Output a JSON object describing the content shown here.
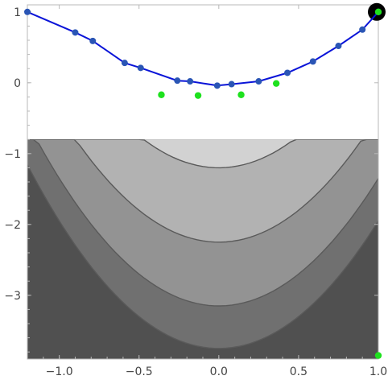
{
  "chart_data": {
    "type": "line",
    "title": "",
    "xlabel": "",
    "ylabel": "",
    "xlim": [
      -1.2,
      1.0
    ],
    "ylim": [
      -3.9,
      1.1
    ],
    "grid": false,
    "legend": "none",
    "x_ticks": [
      -1.0,
      -0.5,
      0.0,
      0.5,
      1.0
    ],
    "x_tick_labels": [
      "−1.0",
      "−0.5",
      "0.0",
      "0.5",
      "1.0"
    ],
    "y_ticks": [
      -3,
      -2,
      -1,
      0,
      1
    ],
    "y_tick_labels": [
      "−3",
      "−2",
      "−1",
      "0",
      "1"
    ],
    "contour_region": {
      "x": [
        -1.2,
        1.0
      ],
      "y": [
        -3.9,
        -0.8
      ]
    },
    "contour_levels": [
      -1.2,
      -2.25,
      -3.15,
      -3.75
    ],
    "contour_fill_colors": [
      "#d2d2d2",
      "#b2b2b2",
      "#939393",
      "#707070",
      "#505050"
    ],
    "contour_line_color": "#5a5a5a",
    "series": [
      {
        "color": "#0a14d8",
        "marker_color": "#2a55b5",
        "points": [
          [
            -1.2,
            1.0
          ],
          [
            -0.9,
            0.71
          ],
          [
            -0.79,
            0.59
          ],
          [
            -0.59,
            0.28
          ],
          [
            -0.49,
            0.21
          ],
          [
            -0.26,
            0.03
          ],
          [
            -0.18,
            0.02
          ],
          [
            -0.01,
            -0.04
          ],
          [
            0.08,
            -0.02
          ],
          [
            0.25,
            0.02
          ],
          [
            0.43,
            0.14
          ],
          [
            0.59,
            0.3
          ],
          [
            0.75,
            0.52
          ],
          [
            0.9,
            0.75
          ],
          [
            1.0,
            1.0
          ]
        ]
      }
    ],
    "scatter": {
      "color": "#1ee11e",
      "points": [
        [
          -0.36,
          -0.17
        ],
        [
          -0.13,
          -0.18
        ],
        [
          0.14,
          -0.17
        ],
        [
          0.36,
          -0.01
        ],
        [
          1.0,
          1.0
        ],
        [
          1.0,
          -3.85
        ]
      ]
    },
    "highlight_point": {
      "x": 1.0,
      "y": 1.0,
      "color": "#000000"
    }
  }
}
